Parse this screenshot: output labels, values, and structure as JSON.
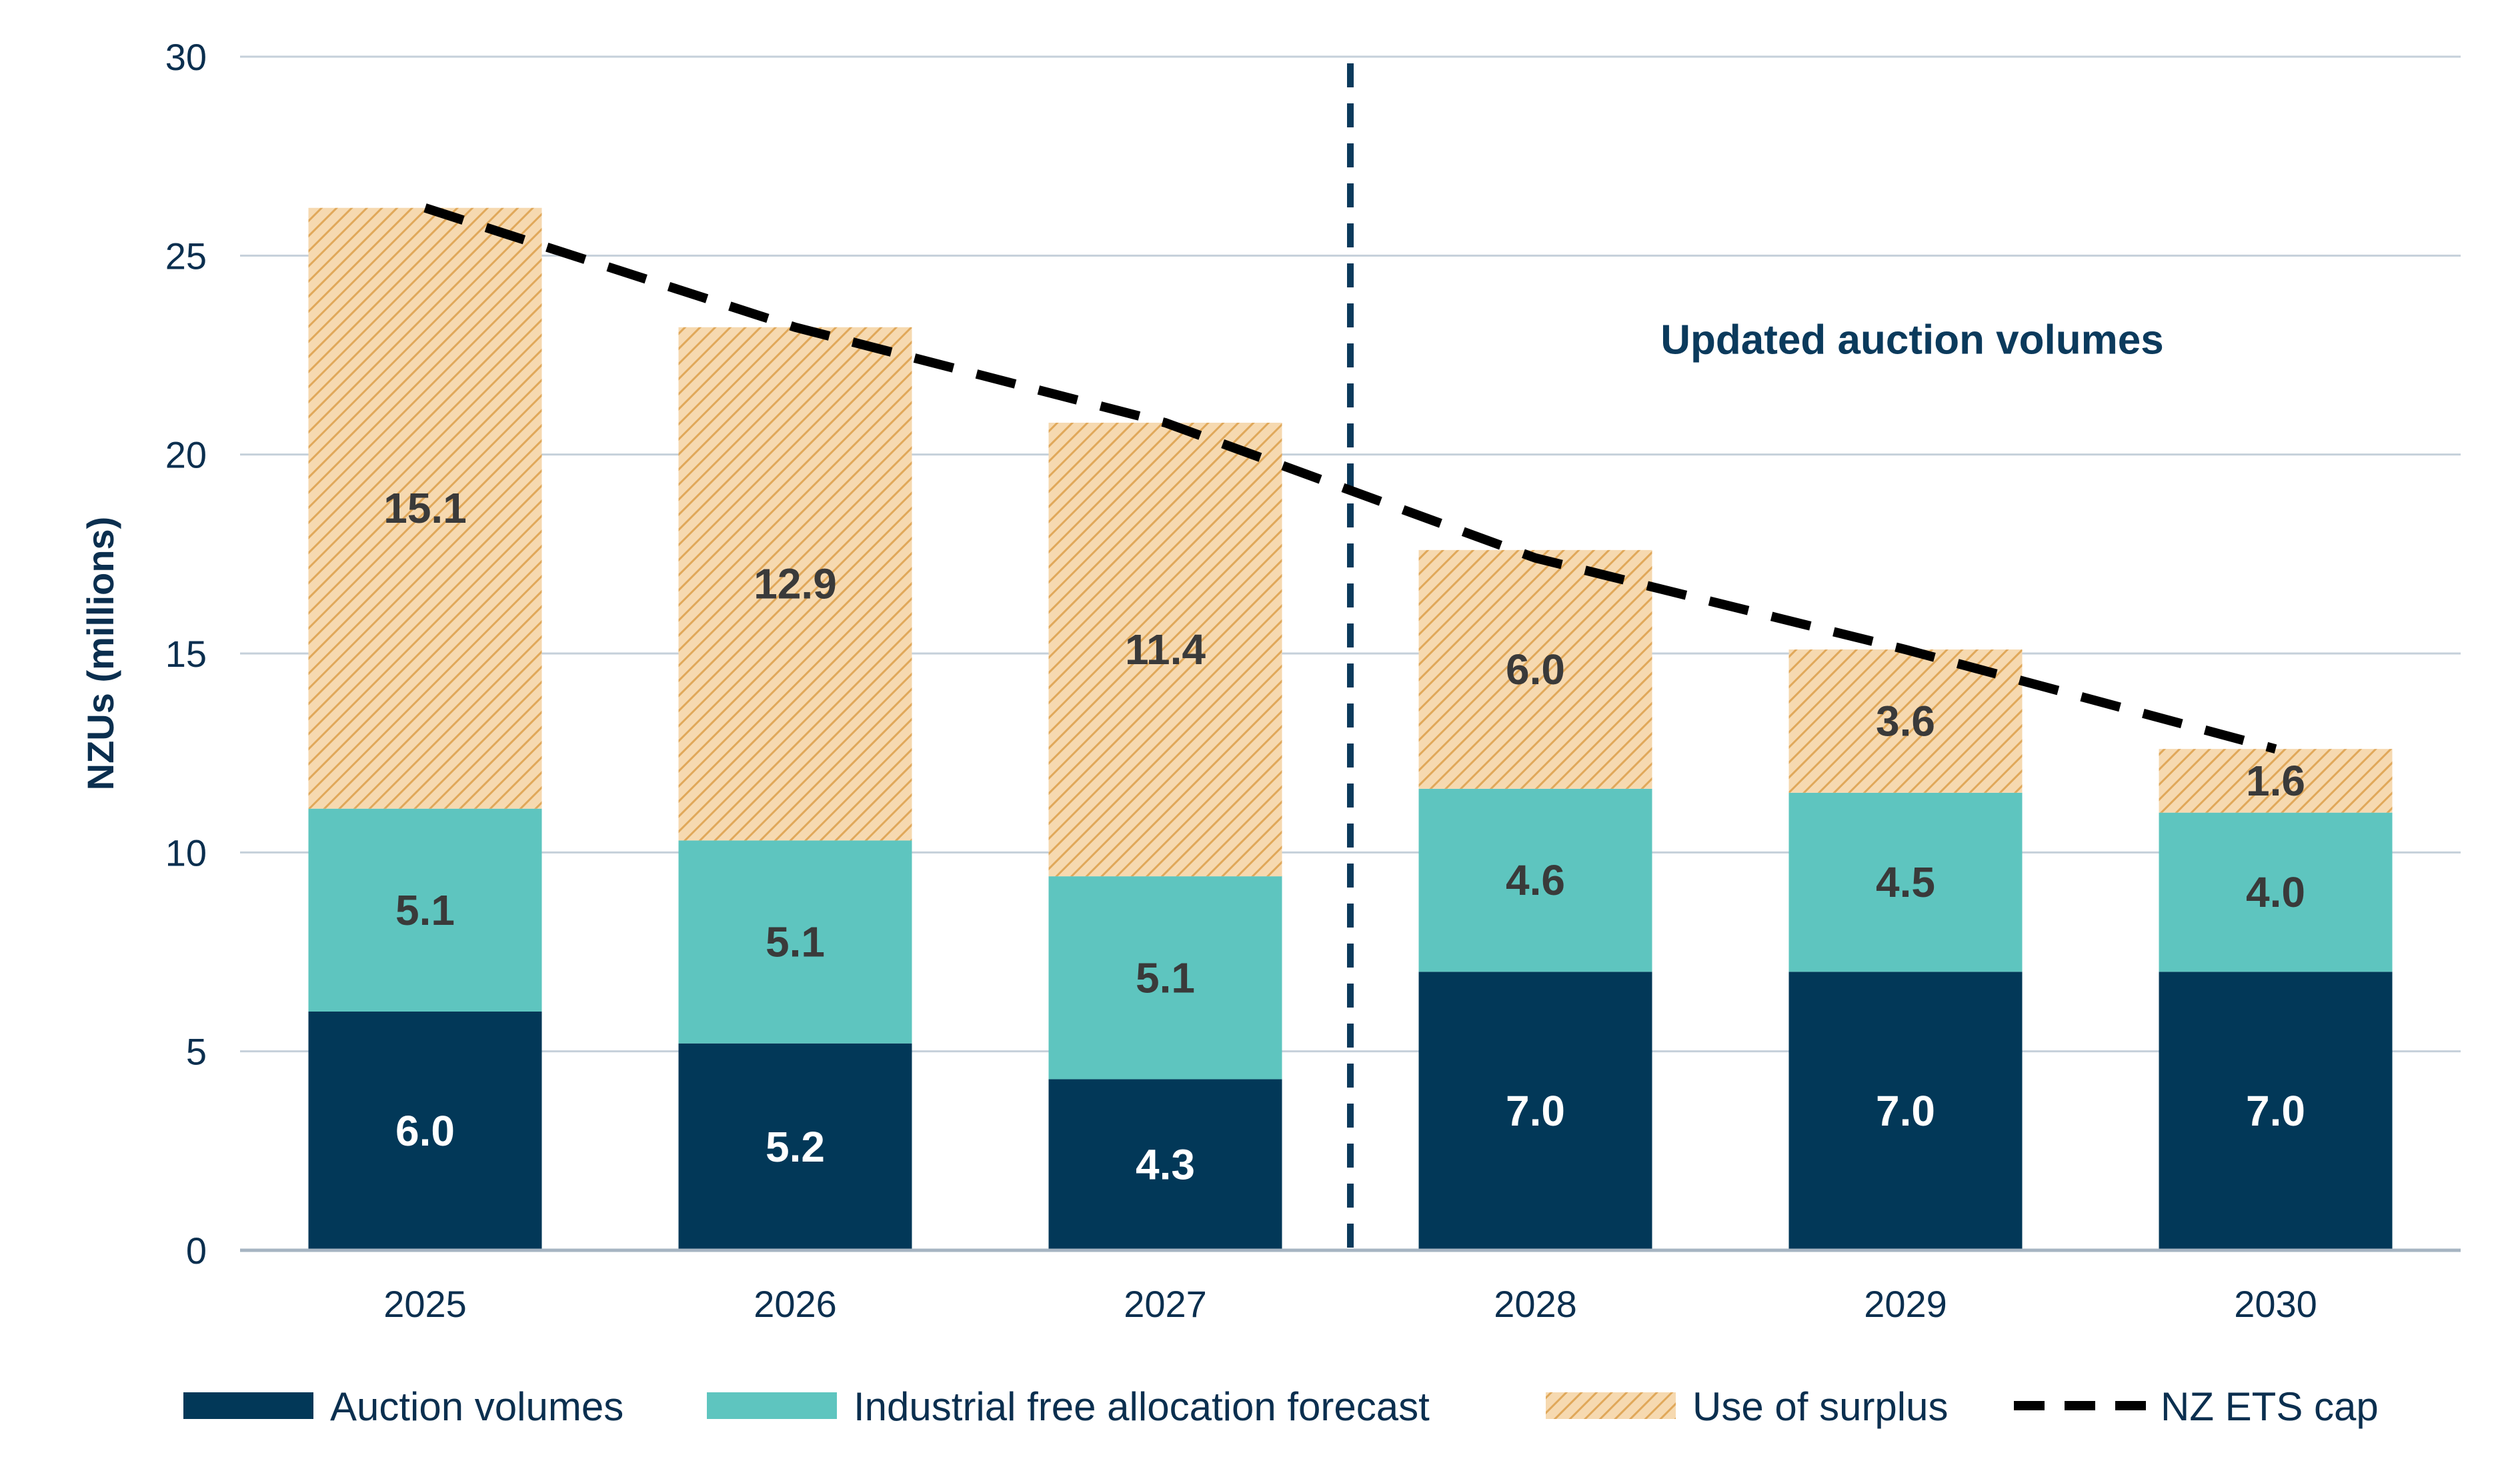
{
  "chart_data": {
    "type": "bar",
    "stacked": true,
    "categories": [
      "2025",
      "2026",
      "2027",
      "2028",
      "2029",
      "2030"
    ],
    "ylabel": "NZUs (millions)",
    "ylim": [
      0,
      30
    ],
    "yticks": [
      0,
      5,
      10,
      15,
      20,
      25,
      30
    ],
    "grid": true,
    "legend_position": "bottom",
    "series": [
      {
        "name": "Auction volumes",
        "values": [
          6.0,
          5.2,
          4.3,
          7.0,
          7.0,
          7.0
        ],
        "labels": [
          "6.0",
          "5.2",
          "4.3",
          "7.0",
          "7.0",
          "7.0"
        ],
        "color": "#023858"
      },
      {
        "name": "Industrial free allocation forecast",
        "values": [
          5.1,
          5.1,
          5.1,
          4.6,
          4.5,
          4.0
        ],
        "labels": [
          "5.1",
          "5.1",
          "5.1",
          "4.6",
          "4.5",
          "4.0"
        ],
        "color": "#5ec5bf"
      },
      {
        "name": "Use of surplus",
        "values": [
          15.1,
          12.9,
          11.4,
          6.0,
          3.6,
          1.6
        ],
        "labels": [
          "15.1",
          "12.9",
          "11.4",
          "6.0",
          "3.6",
          "1.6"
        ],
        "color": "#f6d9b0",
        "hatch_color": "#e0a85a"
      }
    ],
    "cap_line": {
      "name": "NZ ETS cap",
      "values": [
        26.2,
        23.2,
        20.8,
        17.4,
        15.1,
        12.6
      ],
      "color": "#000000",
      "style": "dashed"
    },
    "divider": {
      "after_category": "2027",
      "label": "Updated auction volumes",
      "color": "#0b3a5c"
    }
  },
  "colors": {
    "axis": "#a6b4c2",
    "grid": "#c5d0da",
    "text": "#0b2f4f",
    "label_light": "#ffffff",
    "label_dark": "#3a3a3a"
  }
}
